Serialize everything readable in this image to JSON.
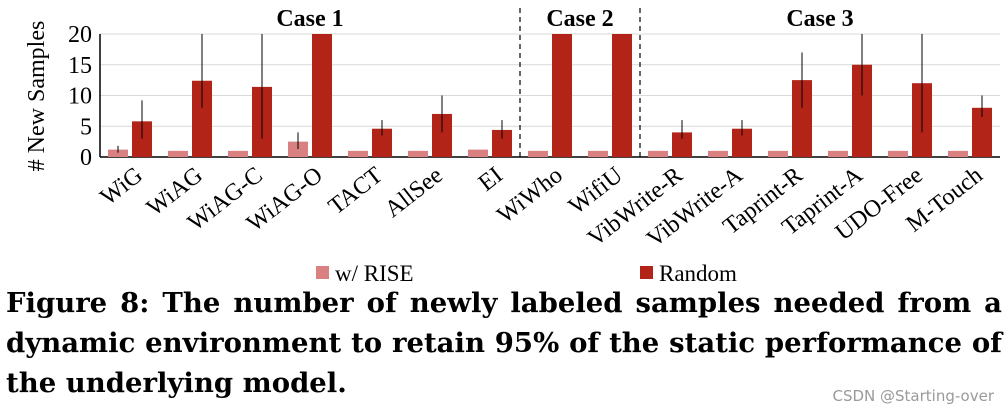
{
  "chart_data": {
    "type": "bar",
    "ylabel": "# New Samples",
    "ylim": [
      0,
      20
    ],
    "yticks": [
      0,
      5,
      10,
      15,
      20
    ],
    "categories": [
      "WiG",
      "WiAG",
      "WiAG-C",
      "WiAG-O",
      "TACT",
      "AllSee",
      "EI",
      "WiWho",
      "WifiU",
      "VibWrite-R",
      "VibWrite-A",
      "Taprint-R",
      "Taprint-A",
      "UDO-Free",
      "M-Touch"
    ],
    "series": [
      {
        "name": "w/ RISE",
        "color": "#d98080",
        "values": [
          1.2,
          1.0,
          1.0,
          2.5,
          1.0,
          1.0,
          1.2,
          1.0,
          1.0,
          1.0,
          1.0,
          1.0,
          1.0,
          1.0,
          1.0
        ],
        "error": [
          [
            0.7,
            1.8
          ],
          null,
          null,
          [
            1.3,
            4.0
          ],
          null,
          null,
          null,
          null,
          null,
          null,
          null,
          null,
          null,
          null,
          null
        ]
      },
      {
        "name": "Random",
        "color": "#b22418",
        "values": [
          5.8,
          12.4,
          11.4,
          20,
          4.6,
          7.0,
          4.4,
          20,
          20,
          4.0,
          4.6,
          12.5,
          15.0,
          12.0,
          8.0
        ],
        "error": [
          [
            3.0,
            9.2
          ],
          [
            8.0,
            20
          ],
          [
            3.0,
            20
          ],
          null,
          [
            3.5,
            6.0
          ],
          [
            4.0,
            10.0
          ],
          [
            3.0,
            6.0
          ],
          null,
          null,
          [
            3.0,
            6.0
          ],
          [
            3.5,
            6.0
          ],
          [
            8.0,
            17.0
          ],
          [
            10.0,
            20
          ],
          [
            4.0,
            20
          ],
          [
            6.5,
            10.0
          ]
        ]
      }
    ],
    "groups": [
      {
        "label": "Case 1",
        "start": 0,
        "end": 6
      },
      {
        "label": "Case 2",
        "start": 7,
        "end": 8
      },
      {
        "label": "Case  3",
        "start": 9,
        "end": 14
      }
    ],
    "legend": "bottom"
  },
  "caption": "Figure 8: The number of newly labeled samples needed from a dynamic environment to retain 95% of the static performance of the underlying model.",
  "watermark": "CSDN @Starting-over"
}
